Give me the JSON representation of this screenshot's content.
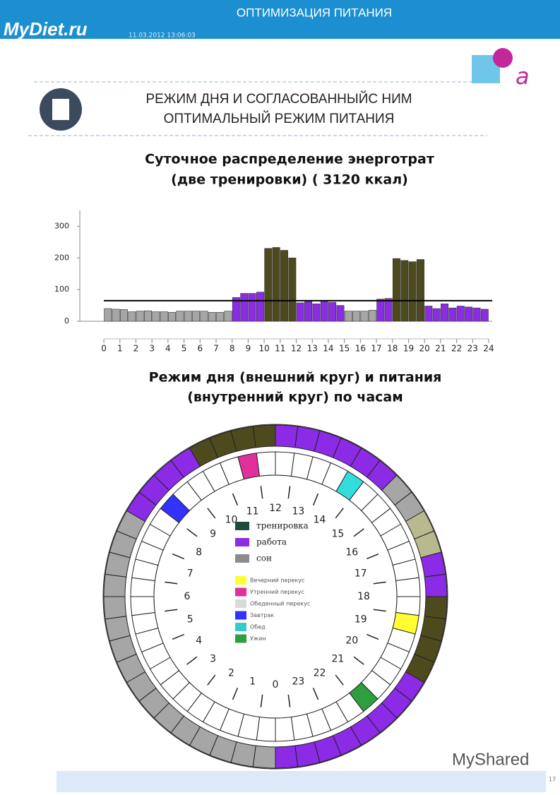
{
  "header": {
    "section": "ОПТИМИЗАЦИЯ ПИТАНИЯ",
    "logo": "MyDiet.ru",
    "timestamp": "11.03.2012 13:06:03",
    "title_line1": "РЕЖИМ ДНЯ И СОГЛАСОВАННЫЙС НИМ",
    "title_line2": "ОПТИМАЛЬНЫЙ РЕЖИМ ПИТАНИЯ"
  },
  "chart_data": [
    {
      "type": "bar",
      "title_line1": "Суточное распределение  энерготрат",
      "title_line2": "(две тренировки) ( 3120 ккал)",
      "x": [
        0,
        0.5,
        1,
        1.5,
        2,
        2.5,
        3,
        3.5,
        4,
        4.5,
        5,
        5.5,
        6,
        6.5,
        7,
        7.5,
        8,
        8.5,
        9,
        9.5,
        10,
        10.5,
        11,
        11.5,
        12,
        12.5,
        13,
        13.5,
        14,
        14.5,
        15,
        15.5,
        16,
        16.5,
        17,
        17.5,
        18,
        18.5,
        19,
        19.5,
        20,
        20.5,
        21,
        21.5,
        22,
        22.5,
        23,
        23.5
      ],
      "values": [
        40,
        38,
        37,
        30,
        32,
        33,
        30,
        30,
        28,
        32,
        32,
        32,
        32,
        28,
        28,
        32,
        75,
        88,
        88,
        92,
        230,
        233,
        224,
        200,
        58,
        62,
        55,
        62,
        60,
        50,
        32,
        32,
        32,
        35,
        70,
        72,
        198,
        192,
        188,
        195,
        48,
        40,
        55,
        42,
        48,
        45,
        42,
        38
      ],
      "bar_colors": [
        "#a6a6a6",
        "#a6a6a6",
        "#a6a6a6",
        "#a6a6a6",
        "#a6a6a6",
        "#a6a6a6",
        "#a6a6a6",
        "#a6a6a6",
        "#a6a6a6",
        "#a6a6a6",
        "#a6a6a6",
        "#a6a6a6",
        "#a6a6a6",
        "#a6a6a6",
        "#a6a6a6",
        "#a6a6a6",
        "#8b2be6",
        "#8b2be6",
        "#8b2be6",
        "#8b2be6",
        "#4d4a1e",
        "#4d4a1e",
        "#4d4a1e",
        "#4d4a1e",
        "#8b2be6",
        "#8b2be6",
        "#8b2be6",
        "#8b2be6",
        "#8b2be6",
        "#8b2be6",
        "#a6a6a6",
        "#a6a6a6",
        "#a6a6a6",
        "#a6a6a6",
        "#8b2be6",
        "#8b2be6",
        "#4d4a1e",
        "#4d4a1e",
        "#4d4a1e",
        "#4d4a1e",
        "#8b2be6",
        "#8b2be6",
        "#8b2be6",
        "#8b2be6",
        "#8b2be6",
        "#8b2be6",
        "#8b2be6",
        "#8b2be6"
      ],
      "reference_line": 65,
      "xlim": [
        -1.5,
        24
      ],
      "xticks": [
        0,
        1,
        2,
        3,
        4,
        5,
        6,
        7,
        8,
        9,
        10,
        11,
        12,
        13,
        14,
        15,
        16,
        17,
        18,
        19,
        20,
        21,
        22,
        23,
        24
      ],
      "ylim": [
        0,
        350
      ],
      "yticks": [
        0,
        100,
        200,
        300
      ]
    }
  ],
  "diagram": {
    "title_line1": "Режим дня (внешний круг) и питания",
    "title_line2": "(внутренний круг) по часам",
    "hours": [
      "0",
      "1",
      "2",
      "3",
      "4",
      "5",
      "6",
      "7",
      "8",
      "9",
      "10",
      "11",
      "12",
      "13",
      "14",
      "15",
      "16",
      "17",
      "18",
      "19",
      "20",
      "21",
      "22",
      "23"
    ],
    "outer_ring": [
      "#a6a6a6",
      "#a6a6a6",
      "#a6a6a6",
      "#a6a6a6",
      "#a6a6a6",
      "#a6a6a6",
      "#a6a6a6",
      "#a6a6a6",
      "#a6a6a6",
      "#a6a6a6",
      "#a6a6a6",
      "#a6a6a6",
      "#a6a6a6",
      "#a6a6a6",
      "#a6a6a6",
      "#a6a6a6",
      "#8b2be6",
      "#8b2be6",
      "#8b2be6",
      "#8b2be6",
      "#4d4a1e",
      "#4d4a1e",
      "#4d4a1e",
      "#4d4a1e",
      "#8b2be6",
      "#8b2be6",
      "#8b2be6",
      "#8b2be6",
      "#8b2be6",
      "#8b2be6",
      "#a6a6a6",
      "#a6a6a6",
      "#b9b98f",
      "#b9b98f",
      "#8b2be6",
      "#8b2be6",
      "#4d4a1e",
      "#4d4a1e",
      "#4d4a1e",
      "#4d4a1e",
      "#8b2be6",
      "#8b2be6",
      "#8b2be6",
      "#8b2be6",
      "#8b2be6",
      "#8b2be6",
      "#8b2be6",
      "#8b2be6"
    ],
    "inner_ring": [
      "#ffffff",
      "#ffffff",
      "#ffffff",
      "#ffffff",
      "#ffffff",
      "#ffffff",
      "#ffffff",
      "#ffffff",
      "#ffffff",
      "#ffffff",
      "#ffffff",
      "#ffffff",
      "#ffffff",
      "#ffffff",
      "#ffffff",
      "#ffffff",
      "#ffffff",
      "#3333ff",
      "#ffffff",
      "#ffffff",
      "#ffffff",
      "#ffffff",
      "#e0309a",
      "#ffffff",
      "#ffffff",
      "#ffffff",
      "#ffffff",
      "#ffffff",
      "#33dddd",
      "#ffffff",
      "#ffffff",
      "#ffffff",
      "#ffffff",
      "#ffffff",
      "#ffffff",
      "#ffffff",
      "#ffffff",
      "#ffff33",
      "#ffffff",
      "#ffffff",
      "#ffffff",
      "#ffffff",
      "#2f9e3f",
      "#ffffff",
      "#ffffff",
      "#ffffff",
      "#ffffff",
      "#ffffff"
    ],
    "legend_modes": [
      {
        "label": "тренировка",
        "color": "#1f4a3f"
      },
      {
        "label": "работа",
        "color": "#8b2be6"
      },
      {
        "label": "сон",
        "color": "#8c8c8c"
      }
    ],
    "legend_meals": [
      {
        "label": "Вечерний перекус",
        "color": "#ffff33"
      },
      {
        "label": "Утренний перекус",
        "color": "#e0309a"
      },
      {
        "label": "Обеденный перекус",
        "color": "#d9d9d9"
      },
      {
        "label": "Завтрак",
        "color": "#3333ff"
      },
      {
        "label": "Обед",
        "color": "#33cccc"
      },
      {
        "label": "Ужин",
        "color": "#2f9e3f"
      }
    ]
  },
  "footer": {
    "watermark": "MyShared",
    "page": "17"
  }
}
